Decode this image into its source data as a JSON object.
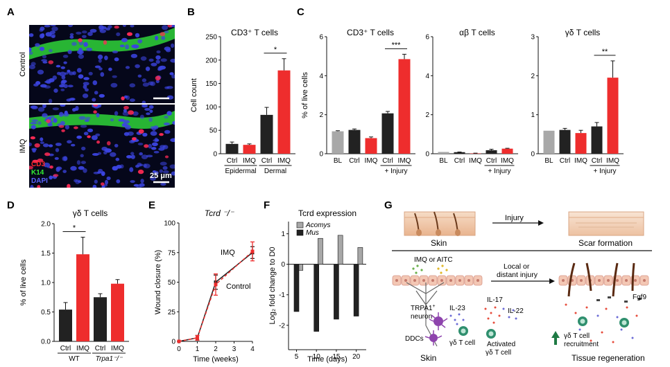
{
  "figure": {
    "panel_labels": [
      "A",
      "B",
      "C",
      "D",
      "E",
      "F",
      "G"
    ],
    "panelA": {
      "row_labels": [
        "Control",
        "IMQ"
      ],
      "stain_labels": [
        "CD3",
        "K14",
        "DAPI"
      ],
      "scale_label": "25 μm",
      "colors": {
        "cd3": "#ff2a2a",
        "k14": "#33ee33",
        "dapi": "#4a52ff"
      }
    },
    "panelG": {
      "skin_label": "Skin",
      "injury_label": "Injury",
      "scar_label": "Scar formation",
      "stimuli_label": "IMQ or AITC",
      "local_label_1": "Local or",
      "local_label_2": "distant injury",
      "trpa1_label_1": "TRPA1",
      "trpa1_sup": "+",
      "trpa1_label_2": "neuron",
      "il23_label": "IL-23",
      "il17_label": "IL-17",
      "il22_label": "IL-22",
      "ddc_label": "DDCs",
      "gdt_label": "γδ T cell",
      "activated_label_1": "Activated",
      "activated_label_2": "γδ T cell",
      "fgf9_label": "Fgf9",
      "recruit_label_1": "γδ T cell",
      "recruit_label_2": "recruitment",
      "skin_bottom_label": "Skin",
      "regen_label": "Tissue regeneration"
    }
  },
  "chart_data": [
    {
      "id": "B",
      "type": "bar",
      "title": "CD3⁺ T cells",
      "ylabel": "Cell count",
      "ylim": [
        0,
        250
      ],
      "yticks": [
        0,
        50,
        100,
        150,
        200,
        250
      ],
      "categories": [
        "Ctrl",
        "IMQ",
        "Ctrl",
        "IMQ"
      ],
      "values": [
        21,
        19,
        83,
        178
      ],
      "errors": [
        4,
        2,
        16,
        25
      ],
      "colors": [
        "#222222",
        "#ee2d2d",
        "#222222",
        "#ee2d2d"
      ],
      "groups": [
        {
          "label": "Epidermal",
          "from": 0,
          "to": 1
        },
        {
          "label": "Dermal",
          "from": 2,
          "to": 3
        }
      ],
      "significance": [
        {
          "from": 2,
          "to": 3,
          "label": "*"
        }
      ]
    },
    {
      "id": "C1",
      "type": "bar",
      "title": "CD3⁺ T cells",
      "ylabel": "% of live cells",
      "ylim": [
        0,
        6
      ],
      "yticks": [
        0,
        2,
        4,
        6
      ],
      "categories": [
        "BL",
        "Ctrl",
        "IMQ",
        "Ctrl",
        "IMQ"
      ],
      "values": [
        1.15,
        1.22,
        0.8,
        2.07,
        4.85
      ],
      "errors": [
        0.03,
        0.05,
        0.06,
        0.1,
        0.25
      ],
      "colors": [
        "#a8a8a8",
        "#222222",
        "#ee2d2d",
        "#222222",
        "#ee2d2d"
      ],
      "groups": [
        {
          "label": "+ Injury",
          "from": 3,
          "to": 4
        }
      ],
      "significance": [
        {
          "from": 3,
          "to": 4,
          "label": "***"
        }
      ]
    },
    {
      "id": "C2",
      "type": "bar",
      "title": "αβ T cells",
      "ylim": [
        0,
        6
      ],
      "yticks": [
        0,
        2,
        4,
        6
      ],
      "categories": [
        "BL",
        "Ctrl",
        "IMQ",
        "Ctrl",
        "IMQ"
      ],
      "values": [
        0.09,
        0.08,
        0.02,
        0.18,
        0.26
      ],
      "errors": [
        0,
        0.01,
        0.01,
        0.05,
        0.02
      ],
      "colors": [
        "#a8a8a8",
        "#222222",
        "#ee2d2d",
        "#222222",
        "#ee2d2d"
      ],
      "groups": [
        {
          "label": "+ Injury",
          "from": 3,
          "to": 4
        }
      ],
      "significance": []
    },
    {
      "id": "C3",
      "type": "bar",
      "title": "γδ T cells",
      "ylim": [
        0,
        3
      ],
      "yticks": [
        0,
        1,
        2,
        3
      ],
      "categories": [
        "BL",
        "Ctrl",
        "IMQ",
        "Ctrl",
        "IMQ"
      ],
      "values": [
        0.59,
        0.61,
        0.53,
        0.7,
        1.95
      ],
      "errors": [
        0,
        0.04,
        0.07,
        0.1,
        0.43
      ],
      "colors": [
        "#a8a8a8",
        "#222222",
        "#ee2d2d",
        "#222222",
        "#ee2d2d"
      ],
      "groups": [
        {
          "label": "+ Injury",
          "from": 3,
          "to": 4
        }
      ],
      "significance": [
        {
          "from": 3,
          "to": 4,
          "label": "**"
        }
      ]
    },
    {
      "id": "D",
      "type": "bar",
      "title": "γδ T cells",
      "ylabel": "% of live cells",
      "ylim": [
        0,
        2.0
      ],
      "yticks": [
        0.0,
        0.5,
        1.0,
        1.5,
        2.0
      ],
      "categories": [
        "Ctrl",
        "IMQ",
        "Ctrl",
        "IMQ"
      ],
      "values": [
        0.54,
        1.48,
        0.75,
        0.98
      ],
      "errors": [
        0.12,
        0.29,
        0.06,
        0.07
      ],
      "colors": [
        "#222222",
        "#ee2d2d",
        "#222222",
        "#ee2d2d"
      ],
      "groups": [
        {
          "label": "WT",
          "from": 0,
          "to": 1
        },
        {
          "label": "Trpa1⁻/⁻",
          "from": 2,
          "to": 3
        }
      ],
      "significance": [
        {
          "from": 0,
          "to": 1,
          "label": "*"
        }
      ]
    },
    {
      "id": "E",
      "type": "line",
      "title": "Tcrd ⁻/⁻",
      "xlabel": "Time (weeks)",
      "ylabel": "Wound closure (%)",
      "xlim": [
        0,
        4
      ],
      "ylim": [
        0,
        100
      ],
      "xticks": [
        0,
        1,
        2,
        3,
        4
      ],
      "yticks": [
        0,
        25,
        50,
        75,
        100
      ],
      "series": [
        {
          "name": "Control",
          "color": "#222222",
          "dash": false,
          "x": [
            0,
            1,
            2,
            4
          ],
          "y": [
            0,
            3,
            50,
            75
          ],
          "errors": [
            0,
            2,
            6,
            5
          ]
        },
        {
          "name": "IMQ",
          "color": "#ee2d2d",
          "dash": true,
          "x": [
            0,
            1,
            2,
            4
          ],
          "y": [
            0,
            3,
            48,
            76
          ],
          "errors": [
            0,
            2,
            9,
            8
          ]
        }
      ]
    },
    {
      "id": "F",
      "type": "bar",
      "title": "Tcrd expression",
      "xlabel": "Time (days)",
      "ylabel": "Log₂ fold change to D0",
      "xlim": [
        3,
        22.5
      ],
      "ylim": [
        -2.8,
        1.4
      ],
      "xticks": [
        5,
        10,
        15,
        20
      ],
      "yticks": [
        -2,
        -1,
        0,
        1
      ],
      "series": [
        {
          "name": "Acomys",
          "color": "#a8a8a8",
          "x": [
            6,
            11,
            16,
            21
          ],
          "values": [
            -0.2,
            0.85,
            0.95,
            0.55
          ]
        },
        {
          "name": "Mus",
          "color": "#222222",
          "x": [
            5,
            10,
            15,
            20
          ],
          "values": [
            -1.55,
            -2.2,
            -1.8,
            -1.7
          ]
        }
      ]
    }
  ]
}
